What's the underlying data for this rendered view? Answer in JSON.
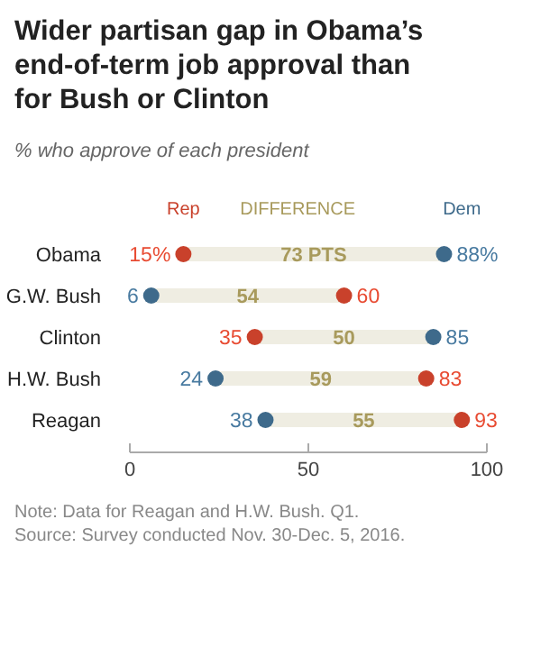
{
  "chart_data": {
    "type": "scatter",
    "orientation": "horizontal",
    "title": "Wider partisan gap in Obama’s end-of-term job approval than for Bush or Clinton",
    "subtitle": "% who approve of each president",
    "categories": [
      "Obama",
      "G.W. Bush",
      "Clinton",
      "H.W. Bush",
      "Reagan"
    ],
    "xlim": [
      0,
      100
    ],
    "xticks": [
      0,
      50,
      100
    ],
    "grid": false,
    "legend": "top",
    "marker": "circle",
    "series": [
      {
        "name": "DIFFERENCE",
        "type": "bar",
        "color": "#efede2",
        "base": [
          15,
          6,
          35,
          24,
          38
        ],
        "values": [
          73,
          54,
          50,
          59,
          55
        ],
        "value_labels": [
          "73 PTS",
          "54",
          "50",
          "59",
          "55"
        ]
      },
      {
        "name": "Rep",
        "color": "#c9412b",
        "values": [
          15,
          60,
          35,
          83,
          93
        ],
        "value_labels": [
          "15%",
          "60",
          "35",
          "83",
          "93"
        ]
      },
      {
        "name": "Dem",
        "color": "#3e6a8b",
        "values": [
          88,
          6,
          85,
          24,
          38
        ],
        "value_labels": [
          "88%",
          "6",
          "85",
          "24",
          "38"
        ]
      }
    ],
    "annotations": [
      "Note: Data for Reagan and H.W. Bush. Q1.",
      "Source: Survey conducted Nov. 30-Dec. 5, 2016."
    ]
  }
}
